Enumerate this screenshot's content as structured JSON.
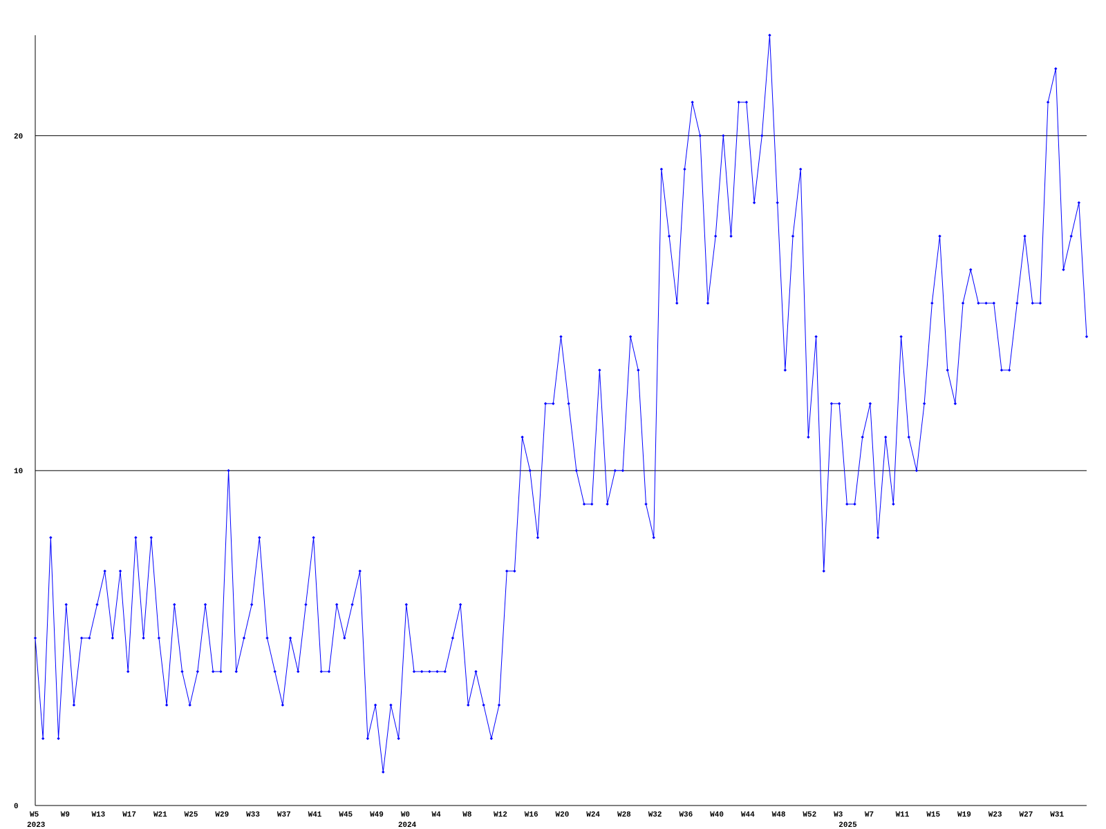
{
  "chart_data": {
    "type": "line",
    "categories": [
      "W5",
      null,
      null,
      null,
      "W9",
      null,
      null,
      null,
      "W13",
      null,
      null,
      null,
      "W17",
      null,
      null,
      null,
      "W21",
      null,
      null,
      null,
      "W25",
      null,
      null,
      null,
      "W29",
      null,
      null,
      null,
      "W33",
      null,
      null,
      null,
      "W37",
      null,
      null,
      null,
      "W41",
      null,
      null,
      null,
      "W45",
      null,
      null,
      null,
      "W49",
      null,
      null,
      null,
      "W0",
      null,
      null,
      null,
      "W4",
      null,
      null,
      null,
      "W8",
      null,
      null,
      null,
      "W12",
      null,
      null,
      null,
      "W16",
      null,
      null,
      null,
      "W20",
      null,
      null,
      null,
      "W24",
      null,
      null,
      null,
      "W28",
      null,
      null,
      null,
      "W32",
      null,
      null,
      null,
      "W36",
      null,
      null,
      null,
      "W40",
      null,
      null,
      null,
      "W44",
      null,
      null,
      null,
      "W48",
      null,
      null,
      null,
      "W52",
      null,
      null,
      null,
      "W3",
      null,
      null,
      null,
      "W7",
      null,
      null,
      null,
      "W11",
      null,
      null,
      null,
      "W15",
      null,
      null,
      null,
      "W19",
      null,
      null,
      null,
      "W23",
      null,
      null,
      null,
      "W27",
      null,
      null,
      null,
      "W31",
      null,
      null,
      null,
      null
    ],
    "year_labels": [
      "2023",
      null,
      null,
      null,
      null,
      null,
      null,
      null,
      null,
      null,
      null,
      null,
      null,
      null,
      null,
      null,
      null,
      null,
      null,
      null,
      null,
      null,
      null,
      null,
      null,
      null,
      null,
      null,
      null,
      null,
      null,
      null,
      null,
      null,
      null,
      null,
      null,
      null,
      null,
      null,
      null,
      null,
      null,
      null,
      null,
      null,
      null,
      null,
      "2024",
      null,
      null,
      null,
      null,
      null,
      null,
      null,
      null,
      null,
      null,
      null,
      null,
      null,
      null,
      null,
      null,
      null,
      null,
      null,
      null,
      null,
      null,
      null,
      null,
      null,
      null,
      null,
      null,
      null,
      null,
      null,
      null,
      null,
      null,
      null,
      null,
      null,
      null,
      null,
      null,
      null,
      null,
      null,
      null,
      null,
      null,
      null,
      null,
      null,
      null,
      null,
      null,
      null,
      null,
      null,
      null,
      "2025",
      null,
      null,
      null,
      null,
      null,
      null,
      null,
      null,
      null,
      null,
      null,
      null,
      null,
      null,
      null,
      null,
      null,
      null,
      null,
      null,
      null,
      null,
      null,
      null,
      null,
      null,
      null,
      null,
      null,
      null,
      null
    ],
    "series": [
      {
        "color": "#0000ff",
        "values": [
          5,
          2,
          8,
          2,
          6,
          3,
          5,
          5,
          6,
          7,
          5,
          7,
          4,
          8,
          5,
          8,
          5,
          3,
          6,
          4,
          3,
          4,
          6,
          4,
          4,
          10,
          4,
          5,
          6,
          8,
          5,
          4,
          3,
          5,
          4,
          6,
          8,
          4,
          4,
          6,
          5,
          6,
          7,
          2,
          3,
          1,
          3,
          2,
          6,
          4,
          4,
          4,
          4,
          4,
          5,
          6,
          3,
          4,
          3,
          2,
          3,
          7,
          7,
          11,
          10,
          8,
          12,
          12,
          14,
          12,
          10,
          9,
          9,
          13,
          9,
          10,
          10,
          14,
          13,
          9,
          8,
          19,
          17,
          15,
          19,
          21,
          20,
          15,
          17,
          20,
          17,
          21,
          21,
          18,
          20,
          23,
          18,
          13,
          17,
          19,
          11,
          14,
          7,
          12,
          12,
          9,
          9,
          11,
          12,
          8,
          11,
          9,
          14,
          11,
          10,
          12,
          15,
          17,
          13,
          12,
          15,
          16,
          15,
          15,
          15,
          13,
          13,
          15,
          17,
          15,
          15,
          21,
          22,
          16,
          17,
          18,
          14
        ]
      }
    ],
    "ylim": [
      0,
      23
    ],
    "yticks": [
      0,
      10,
      20
    ],
    "grid": true
  }
}
